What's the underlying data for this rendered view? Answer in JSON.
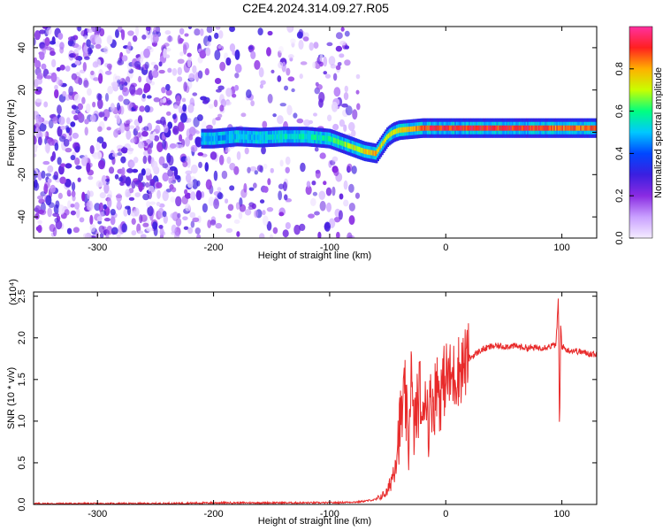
{
  "title": "C2E4.2024.314.09.27.R05",
  "colors": {
    "snr_line": "#e82a2a",
    "spec_low": "#7a1fe0",
    "colormap": [
      "#f4ecff",
      "#c9a0ff",
      "#8a2be2",
      "#3b1fe0",
      "#0047ff",
      "#00c8ff",
      "#00ff80",
      "#c8ff00",
      "#ffb000",
      "#ff2020",
      "#ff30a0"
    ]
  },
  "chart_data": [
    {
      "type": "heatmap",
      "name": "spectrogram",
      "xlabel": "Height of straight line (km)",
      "ylabel": "Frequency (Hz)",
      "xlim": [
        -355,
        130
      ],
      "ylim": [
        -50,
        50
      ],
      "x_ticks": [
        -300,
        -200,
        -100,
        0,
        100
      ],
      "x_tick_labels": [
        "-300",
        "-200",
        "-100",
        "0",
        "100"
      ],
      "y_ticks": [
        -40,
        -20,
        0,
        20,
        40
      ],
      "y_tick_labels": [
        "-40",
        "-20",
        "0",
        "20",
        "40"
      ],
      "colorbar": {
        "label": "Normalized spectral amplitude",
        "range": [
          0.0,
          1.0
        ],
        "ticks": [
          0.0,
          0.2,
          0.4,
          0.6,
          0.8
        ],
        "tick_labels": [
          "0.0",
          "0.2",
          "0.4",
          "0.6",
          "0.8"
        ]
      },
      "ridge": {
        "x": [
          -210,
          -200,
          -180,
          -160,
          -140,
          -120,
          -100,
          -90,
          -80,
          -70,
          -60,
          -55,
          -50,
          -45,
          -40,
          -30,
          -20,
          -10,
          0,
          20,
          40,
          60,
          80,
          95,
          110,
          130
        ],
        "freq": [
          -3,
          -3,
          -2,
          -2.5,
          -2,
          -2,
          -3,
          -5,
          -7,
          -9,
          -10,
          -6,
          -2,
          0,
          1,
          1.5,
          2,
          2,
          2,
          2,
          2,
          2,
          2,
          2,
          2,
          2
        ],
        "amplitude": [
          0.45,
          0.45,
          0.5,
          0.5,
          0.55,
          0.55,
          0.6,
          0.65,
          0.7,
          0.75,
          0.8,
          0.75,
          0.7,
          0.7,
          0.75,
          0.8,
          0.85,
          0.9,
          0.9,
          0.9,
          0.9,
          0.9,
          0.9,
          0.85,
          0.85,
          0.85
        ]
      },
      "noise_region_x": [
        -355,
        -75
      ],
      "noise_amplitude": 0.15
    },
    {
      "type": "line",
      "name": "snr",
      "xlabel": "Height of straight line (km)",
      "ylabel": "SNR (10 * v/v)",
      "scale_label": "(x10⁴)",
      "xlim": [
        -355,
        130
      ],
      "ylim": [
        0,
        2.55
      ],
      "x_ticks": [
        -300,
        -200,
        -100,
        0,
        100
      ],
      "x_tick_labels": [
        "-300",
        "-200",
        "-100",
        "0",
        "100"
      ],
      "y_ticks": [
        0,
        0.5,
        1.0,
        1.5,
        2.0,
        2.5
      ],
      "y_tick_labels": [
        "0.0",
        "0.5",
        "1.0",
        "1.5",
        "2.0",
        "2.5"
      ],
      "series": [
        {
          "x": [
            -355,
            -300,
            -250,
            -200,
            -150,
            -100,
            -75,
            -60,
            -50,
            -45,
            -40,
            -35,
            -32,
            -30,
            -28,
            -25,
            -22,
            -20,
            -18,
            -15,
            -12,
            -10,
            -8,
            -5,
            0,
            5,
            10,
            20,
            30,
            40,
            50,
            60,
            70,
            80,
            90,
            95,
            97,
            98,
            99,
            100,
            105,
            110,
            120,
            130
          ],
          "y": [
            0.01,
            0.01,
            0.01,
            0.02,
            0.02,
            0.02,
            0.03,
            0.06,
            0.15,
            0.4,
            0.9,
            1.3,
            0.6,
            1.7,
            0.9,
            1.1,
            1.4,
            0.8,
            1.5,
            1.0,
            1.3,
            1.2,
            1.5,
            1.3,
            1.55,
            1.5,
            1.6,
            1.75,
            1.85,
            1.9,
            1.9,
            1.9,
            1.88,
            1.88,
            1.9,
            1.92,
            2.5,
            0.8,
            2.2,
            1.9,
            1.85,
            1.85,
            1.82,
            1.8
          ]
        }
      ]
    }
  ]
}
